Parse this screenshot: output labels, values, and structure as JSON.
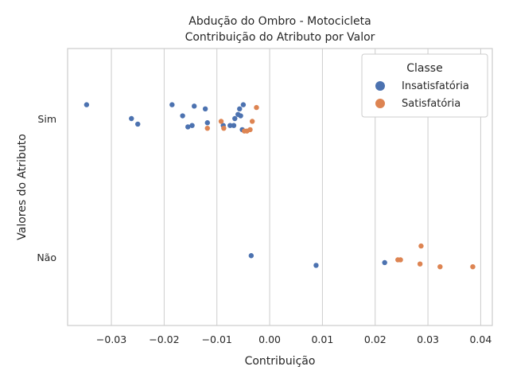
{
  "chart_data": {
    "type": "scatter",
    "title": "Abdução do Ombro - Motocicleta",
    "subtitle": "Contribuição do Atributo por Valor",
    "xlabel": "Contribuição",
    "ylabel": "Valores do Atributo",
    "categories": [
      "Sim",
      "Não"
    ],
    "xlim": [
      -0.0383,
      0.0422
    ],
    "xticks": [
      -0.03,
      -0.02,
      -0.01,
      0.0,
      0.01,
      0.02,
      0.03,
      0.04
    ],
    "xtick_labels": [
      "−0.03",
      "−0.02",
      "−0.01",
      "0.00",
      "0.01",
      "0.02",
      "0.03",
      "0.04"
    ],
    "grid": true,
    "legend": {
      "title": "Classe",
      "position": "top-right"
    },
    "series": [
      {
        "name": "Insatisfatória",
        "color": "#4c72b0",
        "points": [
          {
            "x": -0.0347,
            "y": "Sim",
            "jitter": -0.1
          },
          {
            "x": -0.0262,
            "y": "Sim",
            "jitter": 0.0
          },
          {
            "x": -0.025,
            "y": "Sim",
            "jitter": 0.04
          },
          {
            "x": -0.0185,
            "y": "Sim",
            "jitter": -0.1
          },
          {
            "x": -0.0165,
            "y": "Sim",
            "jitter": -0.02
          },
          {
            "x": -0.0155,
            "y": "Sim",
            "jitter": 0.06
          },
          {
            "x": -0.0147,
            "y": "Sim",
            "jitter": 0.05
          },
          {
            "x": -0.0143,
            "y": "Sim",
            "jitter": -0.09
          },
          {
            "x": -0.0122,
            "y": "Sim",
            "jitter": -0.07
          },
          {
            "x": -0.0118,
            "y": "Sim",
            "jitter": 0.03
          },
          {
            "x": -0.0088,
            "y": "Sim",
            "jitter": 0.05
          },
          {
            "x": -0.0075,
            "y": "Sim",
            "jitter": 0.05
          },
          {
            "x": -0.0068,
            "y": "Sim",
            "jitter": 0.05
          },
          {
            "x": -0.0066,
            "y": "Sim",
            "jitter": -0.0
          },
          {
            "x": -0.006,
            "y": "Sim",
            "jitter": -0.03
          },
          {
            "x": -0.0057,
            "y": "Sim",
            "jitter": -0.07
          },
          {
            "x": -0.0055,
            "y": "Sim",
            "jitter": -0.02
          },
          {
            "x": -0.0052,
            "y": "Sim",
            "jitter": 0.08
          },
          {
            "x": -0.005,
            "y": "Sim",
            "jitter": -0.1
          },
          {
            "x": -0.0035,
            "y": "Não",
            "jitter": -0.01
          },
          {
            "x": 0.0088,
            "y": "Não",
            "jitter": 0.06
          },
          {
            "x": 0.0218,
            "y": "Não",
            "jitter": 0.04
          }
        ]
      },
      {
        "name": "Satisfatória",
        "color": "#dd8452",
        "points": [
          {
            "x": -0.0118,
            "y": "Sim",
            "jitter": 0.07
          },
          {
            "x": -0.0092,
            "y": "Sim",
            "jitter": 0.02
          },
          {
            "x": -0.0087,
            "y": "Sim",
            "jitter": 0.07
          },
          {
            "x": -0.0048,
            "y": "Sim",
            "jitter": 0.09
          },
          {
            "x": -0.0043,
            "y": "Sim",
            "jitter": 0.09
          },
          {
            "x": -0.0037,
            "y": "Sim",
            "jitter": 0.08
          },
          {
            "x": -0.0033,
            "y": "Sim",
            "jitter": 0.02
          },
          {
            "x": -0.0025,
            "y": "Sim",
            "jitter": -0.08
          },
          {
            "x": 0.0243,
            "y": "Não",
            "jitter": 0.02
          },
          {
            "x": 0.0248,
            "y": "Não",
            "jitter": 0.02
          },
          {
            "x": 0.0285,
            "y": "Não",
            "jitter": 0.05
          },
          {
            "x": 0.0287,
            "y": "Não",
            "jitter": -0.08
          },
          {
            "x": 0.0323,
            "y": "Não",
            "jitter": 0.07
          },
          {
            "x": 0.0385,
            "y": "Não",
            "jitter": 0.07
          }
        ]
      }
    ]
  }
}
